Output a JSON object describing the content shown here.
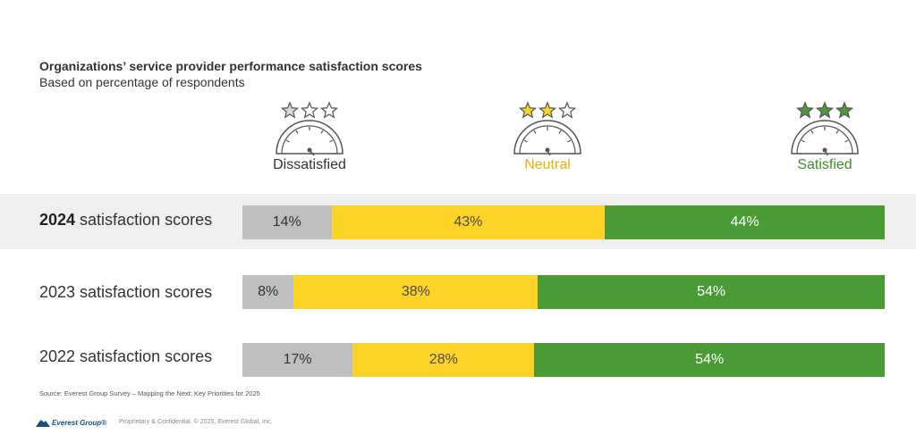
{
  "chart_data": {
    "type": "bar",
    "orientation": "horizontal",
    "stacked": true,
    "title": "Organizations’ service provider performance satisfaction scores",
    "subtitle": "Based on percentage of respondents",
    "series": [
      {
        "name": "Dissatisfied",
        "color": "#bfbfbf",
        "values": [
          14,
          8,
          17
        ],
        "labels": [
          "14%",
          "8%",
          "17%"
        ]
      },
      {
        "name": "Neutral",
        "color": "#fdd327",
        "values": [
          43,
          38,
          28
        ],
        "labels": [
          "43%",
          "38%",
          "28%"
        ]
      },
      {
        "name": "Satisfied",
        "color": "#4a9a36",
        "values": [
          44,
          54,
          54
        ],
        "labels": [
          "44%",
          "54%",
          "54%"
        ]
      }
    ],
    "rows": [
      {
        "year": "2024",
        "suffix": " satisfaction scores",
        "label": "2024 satisfaction scores",
        "highlight": true
      },
      {
        "year": "2023",
        "suffix": " satisfaction scores",
        "label": "2023 satisfaction scores",
        "highlight": false
      },
      {
        "year": "2022",
        "suffix": " satisfaction scores",
        "label": "2022 satisfaction scores",
        "highlight": false
      }
    ]
  },
  "legend": [
    {
      "label": "Dissatisfied",
      "color": "#333333",
      "star_fill": "#d9d9d9",
      "filled_stars": 1,
      "icon": "gauge-icon"
    },
    {
      "label": "Neutral",
      "color": "#e8b400",
      "star_fill": "#fdd327",
      "filled_stars": 2,
      "icon": "gauge-icon"
    },
    {
      "label": "Satisfied",
      "color": "#3e8e2e",
      "star_fill": "#4a9a36",
      "filled_stars": 3,
      "icon": "gauge-icon"
    }
  ],
  "source": "Source: Everest Group Survey – Mapping the Next: Key Priorities for 2025",
  "footer": {
    "logo_text": "Everest Group®",
    "copyright": "Proprietary & Confidential. © 2025, Everest Global, Inc."
  }
}
